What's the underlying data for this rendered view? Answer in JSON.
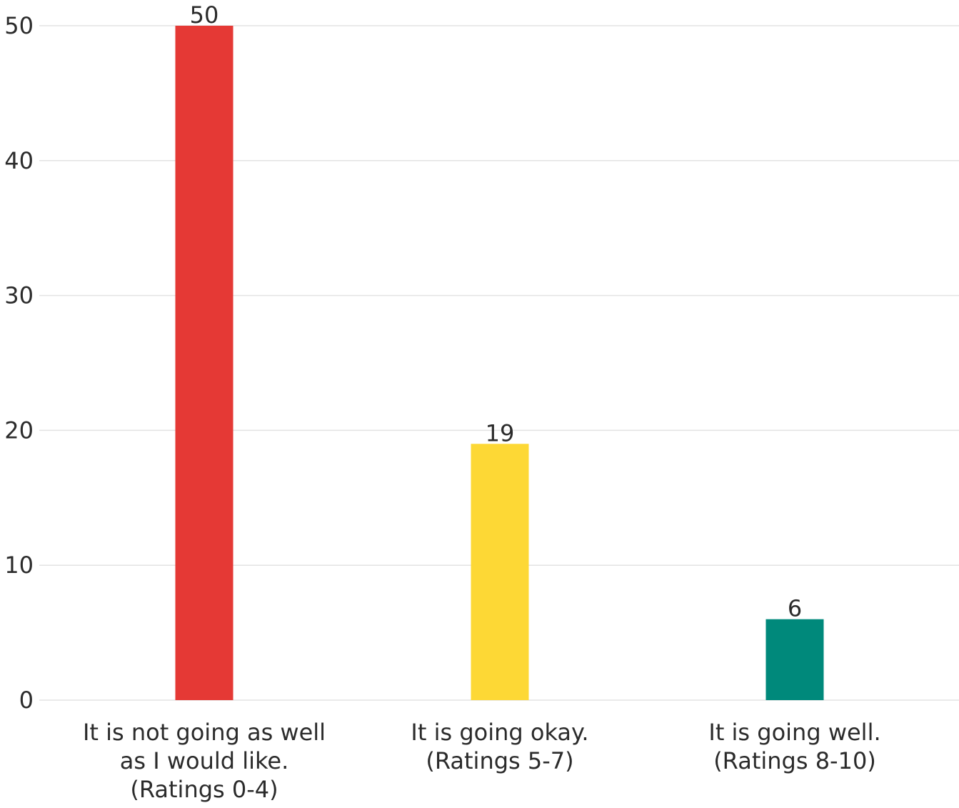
{
  "chart_data": {
    "type": "bar",
    "title": "",
    "xlabel": "",
    "ylabel": "",
    "ylim": [
      0,
      50
    ],
    "yticks": [
      0,
      10,
      20,
      30,
      40,
      50
    ],
    "grid": true,
    "legend": "none",
    "categories": [
      [
        "It is not going as well",
        "as I would like.",
        "(Ratings 0-4)"
      ],
      [
        "It is going okay.",
        "(Ratings 5-7)"
      ],
      [
        "It is going well.",
        "(Ratings 8-10)"
      ]
    ],
    "values": [
      50,
      19,
      6
    ],
    "data_labels": [
      "50",
      "19",
      "6"
    ],
    "colors": [
      "#e53935",
      "#fdd835",
      "#00897b"
    ],
    "gridline_color": "#e3e3e3"
  }
}
